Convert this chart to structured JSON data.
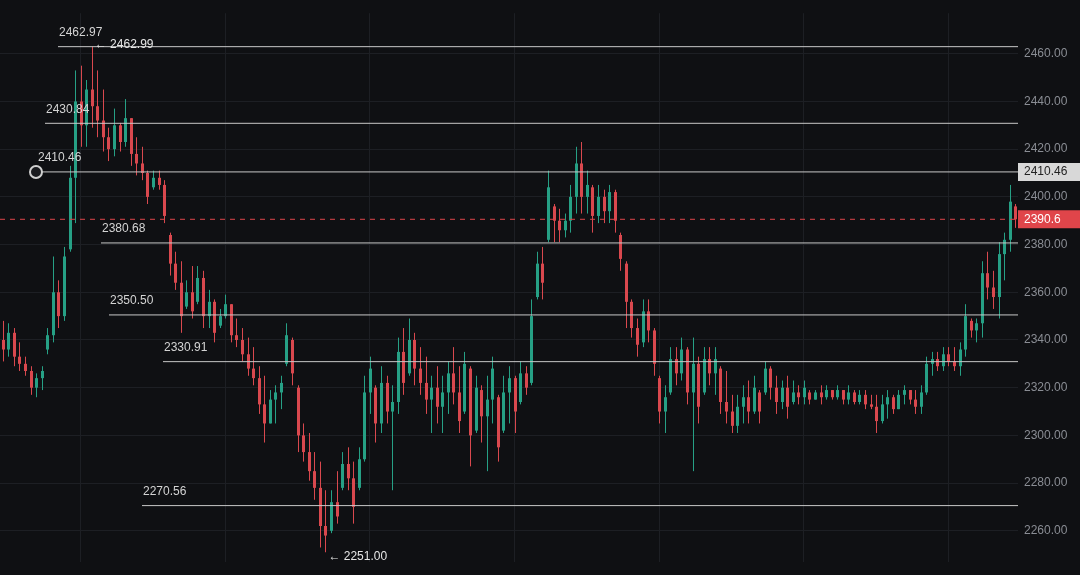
{
  "chart_data": {
    "type": "candlestick",
    "categories": [
      null,
      null,
      null,
      null,
      null,
      null,
      null,
      null,
      null,
      null,
      null,
      null,
      null,
      null,
      null,
      null,
      null,
      null,
      null,
      null,
      null,
      null,
      null,
      null,
      null,
      null,
      null,
      null,
      null,
      null,
      null,
      null,
      null,
      null,
      null,
      null,
      null,
      null,
      null,
      null,
      null,
      null,
      null,
      null,
      null,
      null,
      null,
      null,
      null,
      null,
      null,
      null,
      null,
      null,
      null,
      null,
      null,
      null,
      null,
      null,
      null,
      null,
      null,
      null,
      null,
      null,
      null,
      null,
      null,
      null,
      null,
      null,
      null,
      null,
      null,
      null,
      null,
      null,
      null,
      null,
      null,
      null,
      null,
      null,
      null,
      null,
      null,
      null,
      null,
      null,
      null,
      null,
      null,
      null,
      null,
      null,
      null,
      null,
      null,
      null,
      null,
      null,
      null,
      null,
      null,
      null,
      null,
      null,
      null,
      null,
      null,
      null,
      null,
      null,
      null,
      null,
      null,
      null,
      null,
      null,
      null,
      null,
      null,
      null,
      null,
      null,
      null,
      null,
      null,
      null,
      null,
      null,
      null,
      null,
      null,
      null,
      null,
      null,
      null,
      null,
      null,
      null,
      null,
      null,
      null,
      null,
      null,
      null,
      null,
      null,
      null,
      null,
      null,
      null,
      null,
      null,
      null,
      null,
      null,
      null,
      null,
      null,
      null,
      null,
      null,
      null,
      null,
      null,
      null,
      null,
      null,
      null,
      null,
      null,
      null,
      null,
      null,
      null,
      null,
      null,
      null,
      null,
      null
    ],
    "ohlc": [
      [
        2340,
        2348,
        2331,
        2336
      ],
      [
        2336,
        2347,
        2333,
        2343
      ],
      [
        2343,
        2345,
        2329,
        2333
      ],
      [
        2333,
        2339,
        2327,
        2330
      ],
      [
        2330,
        2333,
        2325,
        2327
      ],
      [
        2327,
        2329,
        2317,
        2320
      ],
      [
        2320,
        2326,
        2316,
        2324
      ],
      [
        2324,
        2329,
        2319,
        2327
      ],
      [
        2336,
        2345,
        2334,
        2342
      ],
      [
        2342,
        2375,
        2339,
        2360
      ],
      [
        2360,
        2365,
        2345,
        2350
      ],
      [
        2350,
        2379,
        2348,
        2375
      ],
      [
        2378,
        2413,
        2377,
        2408
      ],
      [
        2408,
        2453,
        2389,
        2440
      ],
      [
        2440,
        2455,
        2421,
        2430
      ],
      [
        2430,
        2449,
        2421,
        2445
      ],
      [
        2445,
        2462.99,
        2429,
        2438
      ],
      [
        2438,
        2453,
        2425,
        2432
      ],
      [
        2432,
        2445,
        2419,
        2425
      ],
      [
        2425,
        2429,
        2415,
        2420
      ],
      [
        2420,
        2437,
        2417,
        2430
      ],
      [
        2430,
        2431,
        2419,
        2423
      ],
      [
        2423,
        2441,
        2421,
        2433
      ],
      [
        2433,
        2433,
        2413,
        2418
      ],
      [
        2418,
        2425,
        2409,
        2414
      ],
      [
        2414,
        2421,
        2407,
        2410
      ],
      [
        2410,
        2411,
        2397,
        2400
      ],
      [
        2404,
        2411,
        2403,
        2408
      ],
      [
        2408,
        2411,
        2403,
        2405
      ],
      [
        2405,
        2407,
        2389,
        2392
      ],
      [
        2384,
        2385,
        2367,
        2372
      ],
      [
        2372,
        2377,
        2361,
        2364
      ],
      [
        2364,
        2373,
        2343,
        2350
      ],
      [
        2354,
        2365,
        2353,
        2360
      ],
      [
        2360,
        2371,
        2349,
        2352
      ],
      [
        2356,
        2371,
        2355,
        2366
      ],
      [
        2366,
        2369,
        2345,
        2350
      ],
      [
        2350,
        2361,
        2345,
        2356
      ],
      [
        2356,
        2357,
        2339,
        2343
      ],
      [
        2346,
        2353,
        2345,
        2350
      ],
      [
        2350,
        2359,
        2349,
        2355
      ],
      [
        2355,
        2355,
        2339,
        2342
      ],
      [
        2342,
        2349,
        2337,
        2340
      ],
      [
        2340,
        2345,
        2331,
        2334
      ],
      [
        2334,
        2341,
        2325,
        2328
      ],
      [
        2328,
        2337,
        2321,
        2324
      ],
      [
        2324,
        2329,
        2309,
        2313
      ],
      [
        2313,
        2325,
        2297,
        2305
      ],
      [
        2305,
        2319,
        2305,
        2315
      ],
      [
        2315,
        2321,
        2305,
        2318
      ],
      [
        2318,
        2325,
        2311,
        2322
      ],
      [
        2330,
        2347,
        2329,
        2342
      ],
      [
        2340,
        2341,
        2321,
        2326
      ],
      [
        2320,
        2321,
        2293,
        2300
      ],
      [
        2300,
        2305,
        2289,
        2293
      ],
      [
        2293,
        2301,
        2281,
        2285
      ],
      [
        2285,
        2293,
        2273,
        2278
      ],
      [
        2278,
        2289,
        2253,
        2262
      ],
      [
        2262,
        2277,
        2251,
        2258
      ],
      [
        2260,
        2277,
        2259,
        2272
      ],
      [
        2272,
        2285,
        2263,
        2266
      ],
      [
        2278,
        2293,
        2277,
        2288
      ],
      [
        2288,
        2295,
        2277,
        2282
      ],
      [
        2282,
        2289,
        2263,
        2270
      ],
      [
        2278,
        2295,
        2277,
        2290
      ],
      [
        2290,
        2325,
        2289,
        2318
      ],
      [
        2318,
        2333,
        2309,
        2328
      ],
      [
        2320,
        2321,
        2297,
        2305
      ],
      [
        2305,
        2329,
        2301,
        2322
      ],
      [
        2322,
        2325,
        2305,
        2310
      ],
      [
        2310,
        2321,
        2277,
        2314
      ],
      [
        2314,
        2341,
        2309,
        2335
      ],
      [
        2335,
        2345,
        2317,
        2322
      ],
      [
        2326,
        2349,
        2325,
        2340
      ],
      [
        2340,
        2343,
        2321,
        2328
      ],
      [
        2328,
        2337,
        2317,
        2322
      ],
      [
        2322,
        2333,
        2309,
        2315
      ],
      [
        2315,
        2325,
        2301,
        2320
      ],
      [
        2320,
        2329,
        2305,
        2312
      ],
      [
        2312,
        2325,
        2301,
        2318
      ],
      [
        2318,
        2331,
        2309,
        2326
      ],
      [
        2326,
        2337,
        2313,
        2318
      ],
      [
        2318,
        2329,
        2301,
        2306
      ],
      [
        2310,
        2335,
        2309,
        2330
      ],
      [
        2328,
        2329,
        2287,
        2300
      ],
      [
        2302,
        2325,
        2301,
        2320
      ],
      [
        2319,
        2321,
        2297,
        2308
      ],
      [
        2308,
        2325,
        2285,
        2315
      ],
      [
        2315,
        2333,
        2305,
        2328
      ],
      [
        2316,
        2317,
        2289,
        2295
      ],
      [
        2302,
        2325,
        2301,
        2318
      ],
      [
        2318,
        2329,
        2305,
        2324
      ],
      [
        2324,
        2325,
        2301,
        2310
      ],
      [
        2314,
        2331,
        2313,
        2326
      ],
      [
        2326,
        2329,
        2317,
        2320
      ],
      [
        2322,
        2357,
        2321,
        2350
      ],
      [
        2358,
        2377,
        2357,
        2372
      ],
      [
        2372,
        2379,
        2357,
        2364
      ],
      [
        2382,
        2411,
        2381,
        2404
      ],
      [
        2396,
        2397,
        2381,
        2390
      ],
      [
        2390,
        2395,
        2381,
        2386
      ],
      [
        2386,
        2393,
        2383,
        2390
      ],
      [
        2390,
        2405,
        2385,
        2400
      ],
      [
        2400,
        2421,
        2393,
        2414
      ],
      [
        2414,
        2423,
        2393,
        2400
      ],
      [
        2400,
        2411,
        2393,
        2405
      ],
      [
        2404,
        2405,
        2385,
        2392
      ],
      [
        2392,
        2405,
        2389,
        2400
      ],
      [
        2400,
        2403,
        2389,
        2394
      ],
      [
        2394,
        2405,
        2389,
        2402
      ],
      [
        2402,
        2403,
        2385,
        2390
      ],
      [
        2384,
        2385,
        2369,
        2374
      ],
      [
        2372,
        2373,
        2345,
        2356
      ],
      [
        2356,
        2357,
        2341,
        2345
      ],
      [
        2345,
        2349,
        2333,
        2338
      ],
      [
        2339,
        2357,
        2337,
        2352
      ],
      [
        2352,
        2357,
        2339,
        2344
      ],
      [
        2344,
        2345,
        2325,
        2330
      ],
      [
        2324,
        2325,
        2305,
        2310
      ],
      [
        2310,
        2321,
        2301,
        2316
      ],
      [
        2318,
        2337,
        2317,
        2332
      ],
      [
        2332,
        2337,
        2321,
        2326
      ],
      [
        2326,
        2341,
        2323,
        2336
      ],
      [
        2336,
        2337,
        2313,
        2318
      ],
      [
        2318,
        2341,
        2285,
        2330
      ],
      [
        2330,
        2333,
        2305,
        2312
      ],
      [
        2318,
        2337,
        2317,
        2332
      ],
      [
        2332,
        2337,
        2321,
        2326
      ],
      [
        2326,
        2337,
        2317,
        2332
      ],
      [
        2328,
        2329,
        2309,
        2314
      ],
      [
        2314,
        2327,
        2305,
        2310
      ],
      [
        2310,
        2317,
        2301,
        2304
      ],
      [
        2304,
        2317,
        2301,
        2312
      ],
      [
        2312,
        2321,
        2305,
        2316
      ],
      [
        2316,
        2323,
        2305,
        2310
      ],
      [
        2310,
        2325,
        2309,
        2320
      ],
      [
        2318,
        2319,
        2305,
        2310
      ],
      [
        2318,
        2331,
        2317,
        2328
      ],
      [
        2328,
        2329,
        2315,
        2320
      ],
      [
        2320,
        2325,
        2309,
        2314
      ],
      [
        2314,
        2323,
        2311,
        2320
      ],
      [
        2320,
        2325,
        2307,
        2312
      ],
      [
        2314,
        2323,
        2313,
        2318
      ],
      [
        2318,
        2321,
        2313,
        2316
      ],
      [
        2316,
        2323,
        2313,
        2320
      ],
      [
        2318,
        2319,
        2313,
        2315
      ],
      [
        2315,
        2319,
        2315,
        2318
      ],
      [
        2318,
        2321,
        2313,
        2316
      ],
      [
        2316,
        2321,
        2315,
        2319
      ],
      [
        2319,
        2319,
        2315,
        2316
      ],
      [
        2316,
        2321,
        2315,
        2319
      ],
      [
        2319,
        2319,
        2313,
        2315
      ],
      [
        2315,
        2321,
        2313,
        2318
      ],
      [
        2318,
        2319,
        2313,
        2314
      ],
      [
        2314,
        2319,
        2313,
        2317
      ],
      [
        2317,
        2319,
        2311,
        2313
      ],
      [
        2313,
        2317,
        2311,
        2312
      ],
      [
        2312,
        2317,
        2301,
        2306
      ],
      [
        2306,
        2317,
        2305,
        2313
      ],
      [
        2313,
        2319,
        2307,
        2316
      ],
      [
        2316,
        2317,
        2309,
        2311
      ],
      [
        2311,
        2319,
        2311,
        2317
      ],
      [
        2317,
        2321,
        2313,
        2319
      ],
      [
        2319,
        2319,
        2313,
        2315
      ],
      [
        2315,
        2319,
        2309,
        2312
      ],
      [
        2312,
        2321,
        2309,
        2318
      ],
      [
        2318,
        2333,
        2317,
        2330
      ],
      [
        2330,
        2335,
        2325,
        2332
      ],
      [
        2332,
        2335,
        2327,
        2329
      ],
      [
        2329,
        2337,
        2327,
        2334
      ],
      [
        2334,
        2337,
        2329,
        2331
      ],
      [
        2331,
        2337,
        2327,
        2329
      ],
      [
        2329,
        2339,
        2325,
        2336
      ],
      [
        2336,
        2355,
        2333,
        2350
      ],
      [
        2348,
        2349,
        2341,
        2344
      ],
      [
        2344,
        2349,
        2339,
        2347
      ],
      [
        2347,
        2373,
        2341,
        2368
      ],
      [
        2368,
        2377,
        2357,
        2362
      ],
      [
        2362,
        2369,
        2353,
        2358
      ],
      [
        2358,
        2381,
        2349,
        2376
      ],
      [
        2376,
        2385,
        2365,
        2382
      ],
      [
        2382,
        2405,
        2377,
        2398
      ],
      [
        2396,
        2397,
        2387,
        2390.6
      ]
    ],
    "ylim": [
      2247,
      2477
    ],
    "yticks": [
      {
        "value": 2260,
        "label": "2260.00"
      },
      {
        "value": 2280,
        "label": "2280.00"
      },
      {
        "value": 2300,
        "label": "2300.00"
      },
      {
        "value": 2320,
        "label": "2320.00"
      },
      {
        "value": 2340,
        "label": "2340.00"
      },
      {
        "value": 2360,
        "label": "2360.00"
      },
      {
        "value": 2380,
        "label": "2380.00"
      },
      {
        "value": 2400,
        "label": "2400.00"
      },
      {
        "value": 2420,
        "label": "2420.00"
      },
      {
        "value": 2440,
        "label": "2440.00"
      },
      {
        "value": 2460,
        "label": "2460.00"
      }
    ],
    "ref_lines": [
      {
        "axis": "y",
        "value": 2462.97,
        "label": "2462.97",
        "color": "#c8c8c8"
      },
      {
        "axis": "y",
        "value": 2430.84,
        "label": "2430.84",
        "color": "#c8c8c8"
      },
      {
        "axis": "y",
        "value": 2410.46,
        "label": "2410.46",
        "color": "#c8c8c8"
      },
      {
        "axis": "y",
        "value": 2380.68,
        "label": "2380.68",
        "color": "#c8c8c8"
      },
      {
        "axis": "y",
        "value": 2350.5,
        "label": "2350.50",
        "color": "#c8c8c8"
      },
      {
        "axis": "y",
        "value": 2330.91,
        "label": "2330.91",
        "color": "#c8c8c8"
      },
      {
        "axis": "y",
        "value": 2270.56,
        "label": "2270.56",
        "color": "#c8c8c8"
      },
      {
        "axis": "y",
        "value": 2390.6,
        "label": "2390.6",
        "color": "#e0454a",
        "line_style": "dashed"
      }
    ],
    "annotations": [
      {
        "text": "← 2462.99",
        "y": 2462.99
      },
      "← 2251.00"
    ],
    "grid": true,
    "tick_labels": "y"
  }
}
